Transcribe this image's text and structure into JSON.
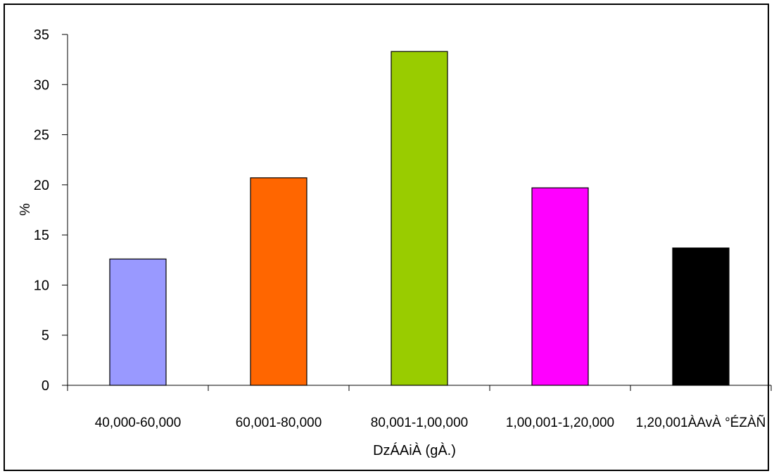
{
  "chart_data": {
    "type": "bar",
    "title": "",
    "xlabel": "DzÁAiÀ (gÀ.)",
    "ylabel": "%",
    "categories": [
      "40,000-60,000",
      "60,001-80,000",
      "80,001-1,00,000",
      "1,00,001-1,20,000",
      "1,20,001ÀAvÀ °ÉZÀÑ"
    ],
    "values": [
      12.6,
      20.7,
      33.3,
      19.7,
      13.7
    ],
    "colors": [
      "#9999ff",
      "#ff6600",
      "#99cc00",
      "#ff00ff",
      "#000000"
    ],
    "ylim": [
      0,
      35
    ],
    "yticks": [
      "0",
      "5",
      "10",
      "15",
      "20",
      "25",
      "30",
      "35"
    ],
    "grid": false,
    "legend": "none"
  }
}
